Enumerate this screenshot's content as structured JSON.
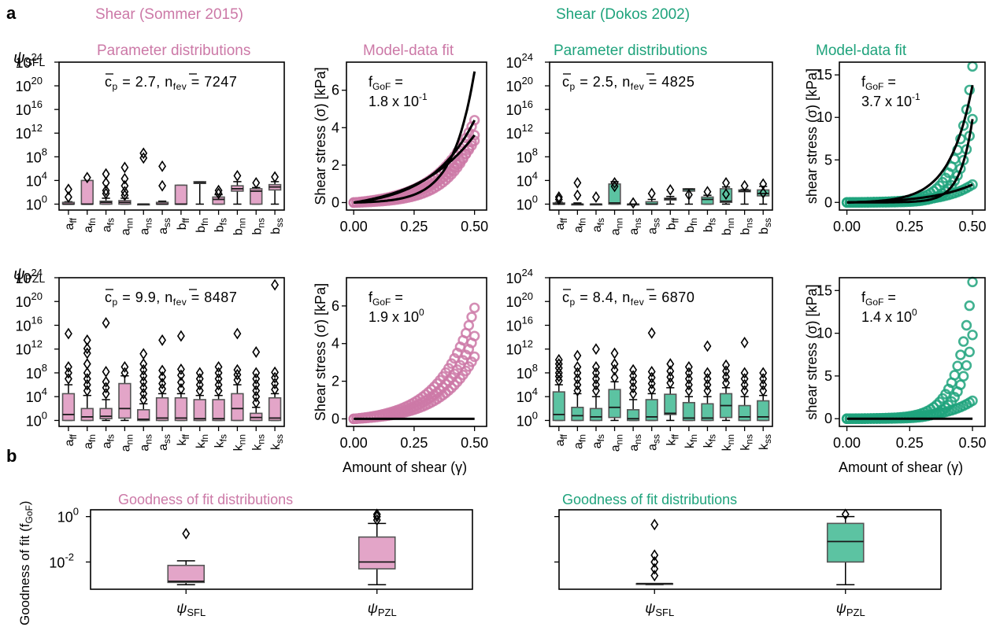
{
  "panel_labels": {
    "a": "a",
    "b": "b"
  },
  "headings": {
    "sommer": "Shear (Sommer 2015)",
    "dokos": "Shear (Dokos 2002)"
  },
  "subtitles": {
    "param": "Parameter distributions",
    "fit": "Model-data fit",
    "gof": "Goodness of fit distributions"
  },
  "row_labels": {
    "sfl_sym": "ψ",
    "sfl_sub": "SFL",
    "pzl_sym": "ψ",
    "pzl_sub": "PZL"
  },
  "axis_text": {
    "shear_stress_cap": "Shear stress (σ) [kPa]",
    "shear_stress_low": "shear stress (σ) [kPa]",
    "amount_of_shear": "Amount of shear (γ)",
    "gof_ylabel_main": "Goodness of fit (f",
    "gof_ylabel_sub": "GoF",
    "gof_ylabel_end": ")"
  },
  "annotations": {
    "a1": {
      "cp": "2.7",
      "nfev": "7247"
    },
    "a3": {
      "cp": "2.5",
      "nfev": "4825"
    },
    "a5": {
      "cp": "9.9",
      "nfev": "8487"
    },
    "a7": {
      "cp": "8.4",
      "nfev": "6870"
    },
    "f2": {
      "mant": "1.8 x 10",
      "exp": "-1"
    },
    "f4": {
      "mant": "3.7 x 10",
      "exp": "-1"
    },
    "f6": {
      "mant": "1.9 x 10",
      "exp": "0"
    },
    "f8": {
      "mant": "1.4 x 10",
      "exp": "0"
    }
  },
  "colors": {
    "pink": "#cc79a7",
    "pink_fill": "#e3a5c8",
    "green": "#1fa37c",
    "green_fill": "#5cc3a2",
    "median_line": "#1a1a1a",
    "model_line": "#000000"
  },
  "chart_data": [
    {
      "id": "a1",
      "type": "box",
      "title": "Parameter distributions",
      "yscale": "log",
      "ylim_exp": [
        -1,
        24
      ],
      "yticks": [
        "10^0",
        "10^4",
        "10^8",
        "10^12",
        "10^16",
        "10^20",
        "10^24"
      ],
      "categories": [
        "aff",
        "afn",
        "afs",
        "ann",
        "ans",
        "ass",
        "bff",
        "bfn",
        "bfs",
        "bnn",
        "bns",
        "bss"
      ],
      "boxes_log10": [
        {
          "lo": 0,
          "q1": 0,
          "med": 0,
          "q3": 0.3,
          "hi": 0.4,
          "fliers": [
            2.5,
            1.2
          ]
        },
        {
          "lo": 0,
          "q1": 0,
          "med": 0,
          "q3": 4.0,
          "hi": 4.0,
          "fliers": [
            4.5
          ]
        },
        {
          "lo": 0,
          "q1": 0,
          "med": 0.3,
          "q3": 0.5,
          "hi": 1,
          "fliers": [
            5.1,
            3.6,
            2.3,
            1.8
          ]
        },
        {
          "lo": 0,
          "q1": 0,
          "med": 0.3,
          "q3": 0.6,
          "hi": 1,
          "fliers": [
            6.2,
            4.3,
            3.1,
            2.1,
            1.5
          ]
        },
        {
          "lo": 0,
          "q1": 0,
          "med": 0,
          "q3": 0,
          "hi": 0,
          "fliers": [
            7.8,
            8.6
          ]
        },
        {
          "lo": 0,
          "q1": 0,
          "med": 0,
          "q3": 0.3,
          "hi": 0.5,
          "fliers": [
            6.4,
            3.1
          ]
        },
        {
          "lo": 0,
          "q1": 0,
          "med": 0,
          "q3": 3.2,
          "hi": 3.2,
          "fliers": []
        },
        {
          "lo": 0,
          "q1": 3.5,
          "med": 3.6,
          "q3": 3.8,
          "hi": 3.8,
          "fliers": []
        },
        {
          "lo": 0,
          "q1": 0,
          "med": 0.8,
          "q3": 1.2,
          "hi": 1.6,
          "fliers": [
            2.3,
            1.8
          ]
        },
        {
          "lo": 0,
          "q1": 2.2,
          "med": 2.6,
          "q3": 3.1,
          "hi": 3.8,
          "fliers": [
            4.8
          ]
        },
        {
          "lo": 0,
          "q1": 0,
          "med": 2.2,
          "q3": 2.6,
          "hi": 2.8,
          "fliers": [
            3.6
          ]
        },
        {
          "lo": 0,
          "q1": 2.4,
          "med": 2.9,
          "q3": 3.3,
          "hi": 3.8,
          "fliers": [
            4.6
          ]
        }
      ]
    },
    {
      "id": "a2",
      "type": "scatter+line",
      "title": "Model-data fit",
      "ylabel": "Shear stress (σ) [kPa]",
      "xlim": [
        -0.03,
        0.55
      ],
      "ylim": [
        -0.4,
        7.5
      ],
      "xticks": [
        0.0,
        0.25,
        0.5
      ],
      "yticks": [
        0,
        2,
        4,
        6
      ],
      "series": [
        {
          "ymax": 3.3,
          "a": 6.5
        },
        {
          "ymax": 4.4,
          "a": 6.5
        },
        {
          "ymax": 3.6,
          "a": 9
        }
      ],
      "model": [
        {
          "ymax": 3.6,
          "a": 4.2
        },
        {
          "ymax": 4.4,
          "a": 5.5
        },
        {
          "ymax": 7.0,
          "a": 11
        }
      ]
    },
    {
      "id": "a3",
      "type": "box",
      "title": "Parameter distributions",
      "yscale": "log",
      "ylim_exp": [
        -1,
        24
      ],
      "yticks": [
        "10^0",
        "10^4",
        "10^8",
        "10^12",
        "10^16",
        "10^20",
        "10^24"
      ],
      "categories": [
        "aff",
        "afn",
        "afs",
        "ann",
        "ans",
        "ass",
        "bff",
        "bfn",
        "bfs",
        "bnn",
        "bns",
        "bss"
      ],
      "boxes_log10": [
        {
          "lo": 0,
          "q1": 0,
          "med": 0,
          "q3": 0.2,
          "hi": 0.3,
          "fliers": [
            1.2,
            0.8
          ]
        },
        {
          "lo": 0,
          "q1": 0,
          "med": 0,
          "q3": 0,
          "hi": 0.2,
          "fliers": [
            3.6,
            1.5
          ]
        },
        {
          "lo": 0,
          "q1": 0,
          "med": 0,
          "q3": 0,
          "hi": 0,
          "fliers": [
            1.2
          ]
        },
        {
          "lo": 0,
          "q1": 0,
          "med": 0.2,
          "q3": 3.4,
          "hi": 3.8,
          "fliers": [
            3.6,
            3.0
          ]
        },
        {
          "lo": 0,
          "q1": 0,
          "med": 0,
          "q3": 0,
          "hi": 0,
          "fliers": [
            0.2
          ]
        },
        {
          "lo": 0,
          "q1": 0,
          "med": 0,
          "q3": 0.4,
          "hi": 0.8,
          "fliers": [
            1.8
          ]
        },
        {
          "lo": 0,
          "q1": 0.7,
          "med": 0.9,
          "q3": 1.0,
          "hi": 1.3,
          "fliers": [
            2.4
          ]
        },
        {
          "lo": 0,
          "q1": 2.2,
          "med": 2.5,
          "q3": 2.6,
          "hi": 2.6,
          "fliers": [
            1.6
          ]
        },
        {
          "lo": 0,
          "q1": 0,
          "med": 0.8,
          "q3": 1.2,
          "hi": 1.5,
          "fliers": [
            2.1
          ]
        },
        {
          "lo": 0,
          "q1": 0.3,
          "med": 0.5,
          "q3": 2.6,
          "hi": 2.9,
          "fliers": [
            3.6,
            1.7
          ]
        },
        {
          "lo": 0,
          "q1": 2.1,
          "med": 2.2,
          "q3": 2.4,
          "hi": 2.5,
          "fliers": [
            3.1
          ]
        },
        {
          "lo": 0,
          "q1": 1.4,
          "med": 1.8,
          "q3": 2.4,
          "hi": 3.0,
          "fliers": [
            3.4,
            1.9
          ]
        }
      ]
    },
    {
      "id": "a4",
      "type": "scatter+line",
      "title": "Model-data fit",
      "ylabel": "shear stress (σ) [kPa]",
      "xlim": [
        -0.03,
        0.55
      ],
      "ylim": [
        -0.9,
        16.5
      ],
      "xticks": [
        0.0,
        0.25,
        0.5
      ],
      "yticks": [
        0,
        5,
        10,
        15
      ],
      "series": [
        {
          "ymax": 16,
          "a": 16
        },
        {
          "ymax": 9.8,
          "a": 19
        },
        {
          "ymax": 2.1,
          "a": 9
        }
      ],
      "model": [
        {
          "ymax": 13.8,
          "a": 11
        },
        {
          "ymax": 9.8,
          "a": 20
        },
        {
          "ymax": 2.1,
          "a": 6
        }
      ]
    },
    {
      "id": "a5",
      "type": "box",
      "title": "",
      "yscale": "log",
      "ylim_exp": [
        -1,
        24
      ],
      "yticks": [
        "10^0",
        "10^4",
        "10^8",
        "10^12",
        "10^16",
        "10^20",
        "10^24"
      ],
      "categories": [
        "aff",
        "afn",
        "afs",
        "ann",
        "ans",
        "ass",
        "kff",
        "kfn",
        "kfs",
        "knn",
        "kns",
        "kss"
      ],
      "boxes_log10": [
        {
          "lo": 0,
          "q1": 0,
          "med": 1.0,
          "q3": 4.5,
          "hi": 6.0,
          "fliers": [
            7,
            8,
            9,
            14.6
          ]
        },
        {
          "lo": 0,
          "q1": 0,
          "med": 0.6,
          "q3": 2.0,
          "hi": 4.2,
          "fliers": [
            5,
            6,
            7,
            8,
            9.5,
            11.3,
            12.1,
            13.5
          ]
        },
        {
          "lo": 0,
          "q1": 0.3,
          "med": 0.7,
          "q3": 2.0,
          "hi": 3.5,
          "fliers": [
            4.5,
            5.5,
            6.5,
            8.2,
            16.4
          ]
        },
        {
          "lo": 0,
          "q1": 0.4,
          "med": 2.0,
          "q3": 6.2,
          "hi": 7.5,
          "fliers": [
            8.0,
            9.0
          ]
        },
        {
          "lo": 0,
          "q1": 0,
          "med": 0.2,
          "q3": 1.8,
          "hi": 2.8,
          "fliers": [
            3.5,
            4.5,
            5.5,
            6.5,
            7.5,
            8.5,
            9.5,
            11.2
          ]
        },
        {
          "lo": 0,
          "q1": 0,
          "med": 0.4,
          "q3": 3.8,
          "hi": 4.5,
          "fliers": [
            5.3,
            6.2,
            7.3,
            8.4,
            13.5
          ]
        },
        {
          "lo": 0,
          "q1": 0,
          "med": 0.4,
          "q3": 3.8,
          "hi": 4.5,
          "fliers": [
            5.3,
            6.4,
            7.6,
            8.6,
            14.2
          ]
        },
        {
          "lo": 0,
          "q1": 0,
          "med": 0.3,
          "q3": 3.5,
          "hi": 4.2,
          "fliers": [
            5.0,
            6.0,
            7.0,
            8.0
          ]
        },
        {
          "lo": 0,
          "q1": 0,
          "med": 0.3,
          "q3": 3.5,
          "hi": 4.2,
          "fliers": [
            5.0,
            6.0,
            7.0,
            8.0,
            9.0
          ]
        },
        {
          "lo": 0,
          "q1": 0,
          "med": 2.0,
          "q3": 4.5,
          "hi": 6.0,
          "fliers": [
            6.8,
            7.7,
            8.5,
            14.6
          ]
        },
        {
          "lo": 0,
          "q1": 0,
          "med": 0.5,
          "q3": 1.2,
          "hi": 2.2,
          "fliers": [
            3,
            4,
            5,
            6,
            7,
            8,
            11.5
          ]
        },
        {
          "lo": 0,
          "q1": 0,
          "med": 0.4,
          "q3": 3.8,
          "hi": 4.5,
          "fliers": [
            5.2,
            6.2,
            7.2,
            8.1,
            22.8
          ]
        }
      ]
    },
    {
      "id": "a6",
      "type": "scatter+line",
      "title": "",
      "ylabel": "Shear stress (σ) [kPa]",
      "xlabel": "Amount of shear (γ)",
      "xlim": [
        -0.03,
        0.55
      ],
      "ylim": [
        -0.4,
        7.5
      ],
      "xticks": [
        0.0,
        0.25,
        0.5
      ],
      "yticks": [
        0,
        2,
        4,
        6
      ],
      "series": [
        {
          "ymax": 5.9,
          "a": 7
        },
        {
          "ymax": 4.4,
          "a": 7
        },
        {
          "ymax": 3.3,
          "a": 7
        }
      ],
      "model": [
        {
          "ymax": 0.0,
          "a": 1
        }
      ]
    },
    {
      "id": "a7",
      "type": "box",
      "title": "",
      "yscale": "log",
      "ylim_exp": [
        -1,
        24
      ],
      "yticks": [
        "10^0",
        "10^4",
        "10^8",
        "10^12",
        "10^16",
        "10^20",
        "10^24"
      ],
      "categories": [
        "aff",
        "afn",
        "afs",
        "ann",
        "ans",
        "ass",
        "kff",
        "kfn",
        "kfs",
        "knn",
        "kns",
        "kss"
      ],
      "boxes_log10": [
        {
          "lo": 0,
          "q1": 0,
          "med": 1.0,
          "q3": 4.8,
          "hi": 6.0,
          "fliers": [
            6.7,
            7.4,
            8.0,
            8.8,
            9.5,
            10.2
          ]
        },
        {
          "lo": 0,
          "q1": 0,
          "med": 0.8,
          "q3": 2.2,
          "hi": 4.5,
          "fliers": [
            5,
            6,
            7,
            8,
            9,
            10.9
          ]
        },
        {
          "lo": 0,
          "q1": 0,
          "med": 0.6,
          "q3": 2.0,
          "hi": 4.0,
          "fliers": [
            5,
            6,
            7,
            8,
            9,
            12.0
          ]
        },
        {
          "lo": 0,
          "q1": 0.5,
          "med": 2.2,
          "q3": 5.2,
          "hi": 6.5,
          "fliers": [
            7.2,
            8.5,
            9.5,
            11.3
          ]
        },
        {
          "lo": 0,
          "q1": 0,
          "med": 0.3,
          "q3": 1.8,
          "hi": 3.5,
          "fliers": [
            4.5,
            5.5,
            6.5,
            7.5,
            8.5
          ]
        },
        {
          "lo": 0,
          "q1": 0,
          "med": 0.6,
          "q3": 3.5,
          "hi": 4.5,
          "fliers": [
            5.2,
            6.2,
            7.2,
            8.2,
            14.7
          ]
        },
        {
          "lo": 0,
          "q1": 1.0,
          "med": 1.2,
          "q3": 4.4,
          "hi": 5.5,
          "fliers": [
            6.3,
            7.3,
            8.3,
            9.5
          ]
        },
        {
          "lo": 0,
          "q1": 0,
          "med": 0.4,
          "q3": 3.0,
          "hi": 4.0,
          "fliers": [
            5,
            6,
            7,
            8,
            9
          ]
        },
        {
          "lo": 0,
          "q1": 0,
          "med": 0.4,
          "q3": 2.8,
          "hi": 4.0,
          "fliers": [
            5,
            6,
            7,
            8,
            12.5
          ]
        },
        {
          "lo": 0,
          "q1": 0.5,
          "med": 2.5,
          "q3": 4.5,
          "hi": 5.5,
          "fliers": [
            6.3,
            7.3,
            8.3,
            9.3
          ]
        },
        {
          "lo": 0,
          "q1": 0,
          "med": 0.6,
          "q3": 2.5,
          "hi": 4.0,
          "fliers": [
            5,
            6,
            7,
            8,
            13.1
          ]
        },
        {
          "lo": 0,
          "q1": 0,
          "med": 0.6,
          "q3": 3.3,
          "hi": 4.2,
          "fliers": [
            5,
            6,
            7,
            8
          ]
        }
      ]
    },
    {
      "id": "a8",
      "type": "scatter+line",
      "title": "",
      "ylabel": "shear stress (σ) [kPa]",
      "xlabel": "Amount of shear (γ)",
      "xlim": [
        -0.03,
        0.55
      ],
      "ylim": [
        -0.9,
        16.5
      ],
      "xticks": [
        0.0,
        0.25,
        0.5
      ],
      "yticks": [
        0,
        5,
        10,
        15
      ],
      "series": [
        {
          "ymax": 16,
          "a": 16
        },
        {
          "ymax": 9.8,
          "a": 19
        },
        {
          "ymax": 2.1,
          "a": 9
        }
      ],
      "model": [
        {
          "ymax": 0.0,
          "a": 1
        }
      ]
    },
    {
      "id": "b1",
      "type": "box",
      "title": "Goodness of fit distributions",
      "yscale": "log",
      "ylim_exp": [
        -3.2,
        0.3
      ],
      "ylabel": "Goodness of fit (fGoF)",
      "yticks": [
        "10^0",
        "10^-2"
      ],
      "categories": [
        "ψSFL",
        "ψPZL"
      ],
      "boxes_log10": [
        {
          "lo": -3.0,
          "q1": -2.9,
          "med": -2.85,
          "q3": -2.15,
          "hi": -1.95,
          "fliers": [
            -0.75
          ]
        },
        {
          "lo": -3.0,
          "q1": -2.3,
          "med": -2.0,
          "q3": -0.9,
          "hi": -0.3,
          "fliers": [
            -0.15,
            0.0,
            0.1
          ]
        }
      ]
    },
    {
      "id": "b2",
      "type": "box",
      "title": "Goodness of fit distributions",
      "yscale": "log",
      "ylim_exp": [
        -3.2,
        0.3
      ],
      "yticks": [
        "",
        ""
      ],
      "categories": [
        "ψSFL",
        "ψPZL"
      ],
      "boxes_log10": [
        {
          "lo": -3.0,
          "q1": -2.95,
          "med": -2.95,
          "q3": -2.95,
          "hi": -2.95,
          "fliers": [
            -0.35,
            -1.7,
            -2.0,
            -2.3,
            -2.6
          ]
        },
        {
          "lo": -3.0,
          "q1": -2.0,
          "med": -1.1,
          "q3": -0.3,
          "hi": 0.0,
          "fliers": [
            0.1
          ]
        }
      ]
    }
  ]
}
